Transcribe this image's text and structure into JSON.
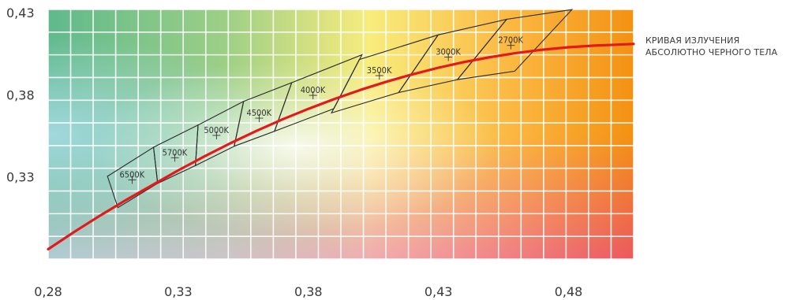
{
  "chart_data": {
    "type": "line",
    "title": "",
    "xlabel": "",
    "ylabel": "",
    "xlim": [
      0.28,
      0.505
    ],
    "ylim": [
      0.28,
      0.432
    ],
    "xticks": [
      "0,28",
      "0,33",
      "0,38",
      "0,43",
      "0,48"
    ],
    "yticks": [
      "0,33",
      "0,38",
      "0,43"
    ],
    "grid": true,
    "annotation": [
      "КРИВАЯ ИЗЛУЧЕНИЯ",
      "АБСОЛЮТНО ЧЕРНОГО ТЕЛА"
    ],
    "curve_color": "#e3191c",
    "series": [
      {
        "name": "КРИВАЯ ИЗЛУЧЕНИЯ АБСОЛЮТНО ЧЕРНОГО ТЕЛА",
        "x": [
          0.28,
          0.29,
          0.3,
          0.31,
          0.32,
          0.33,
          0.34,
          0.35,
          0.36,
          0.37,
          0.38,
          0.39,
          0.4,
          0.41,
          0.42,
          0.43,
          0.44,
          0.45,
          0.46,
          0.47,
          0.48,
          0.49,
          0.505
        ],
        "y": [
          0.286,
          0.2965,
          0.3065,
          0.316,
          0.325,
          0.334,
          0.3425,
          0.3505,
          0.358,
          0.365,
          0.3715,
          0.3775,
          0.383,
          0.388,
          0.3925,
          0.3965,
          0.4,
          0.403,
          0.4055,
          0.4075,
          0.409,
          0.41,
          0.411
        ]
      }
    ],
    "cct_regions": [
      {
        "label": "6500K",
        "center": [
          0.3123,
          0.3282
        ],
        "corners": [
          [
            0.3068,
            0.3113
          ],
          [
            0.3028,
            0.3304
          ],
          [
            0.3205,
            0.3481
          ],
          [
            0.3221,
            0.3261
          ]
        ]
      },
      {
        "label": "5700K",
        "center": [
          0.3287,
          0.3417
        ],
        "corners": [
          [
            0.3221,
            0.3261
          ],
          [
            0.3205,
            0.3481
          ],
          [
            0.3376,
            0.3616
          ],
          [
            0.3366,
            0.3369
          ]
        ]
      },
      {
        "label": "5000K",
        "center": [
          0.3447,
          0.3553
        ],
        "corners": [
          [
            0.3366,
            0.3369
          ],
          [
            0.3376,
            0.3616
          ],
          [
            0.3551,
            0.376
          ],
          [
            0.3515,
            0.3487
          ]
        ]
      },
      {
        "label": "4500K",
        "center": [
          0.3611,
          0.3658
        ],
        "corners": [
          [
            0.3515,
            0.3487
          ],
          [
            0.3551,
            0.376
          ],
          [
            0.3736,
            0.3874
          ],
          [
            0.367,
            0.3578
          ]
        ]
      },
      {
        "label": "4000K",
        "center": [
          0.3818,
          0.3797
        ],
        "corners": [
          [
            0.367,
            0.3578
          ],
          [
            0.3736,
            0.3874
          ],
          [
            0.4006,
            0.4044
          ],
          [
            0.3898,
            0.3716
          ]
        ]
      },
      {
        "label": "3500K",
        "center": [
          0.4073,
          0.3917
        ],
        "corners": [
          [
            0.3889,
            0.369
          ],
          [
            0.3996,
            0.4015
          ],
          [
            0.4299,
            0.4165
          ],
          [
            0.4147,
            0.3814
          ]
        ]
      },
      {
        "label": "3000K",
        "center": [
          0.4338,
          0.403
        ],
        "corners": [
          [
            0.4147,
            0.3814
          ],
          [
            0.4299,
            0.4165
          ],
          [
            0.4562,
            0.426
          ],
          [
            0.4373,
            0.3893
          ]
        ]
      },
      {
        "label": "2700K",
        "center": [
          0.4578,
          0.4101
        ],
        "corners": [
          [
            0.4373,
            0.3893
          ],
          [
            0.4562,
            0.426
          ],
          [
            0.4813,
            0.4319
          ],
          [
            0.4593,
            0.3944
          ]
        ]
      }
    ]
  }
}
